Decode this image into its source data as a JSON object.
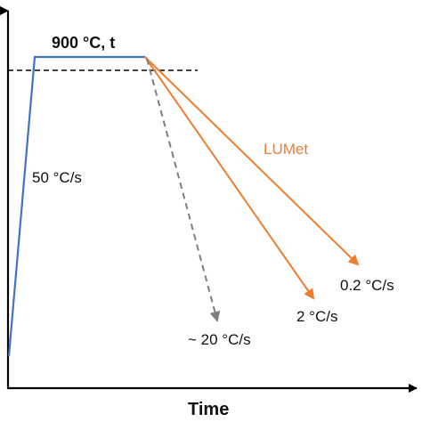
{
  "labels": {
    "hold": "900 °C, t",
    "heating_rate": "50 °C/s",
    "cooling_series": "LUMet",
    "rate_slow": "0.2 °C/s",
    "rate_mid": "2 °C/s",
    "rate_fast": "~ 20 °C/s",
    "x_axis": "Time"
  },
  "colors": {
    "axis": "#000000",
    "heating_profile": "#4472C4",
    "lumet_cooling": "#ED7D31",
    "fast_cooling": "#7F7F7F",
    "reference_line": "#000000"
  },
  "profiles": [
    {
      "name": "Heating and hold",
      "style": "solid"
    },
    {
      "name": "Cooling 0.2 °C/s",
      "style": "solid",
      "series": "LUMet"
    },
    {
      "name": "Cooling 2 °C/s",
      "style": "solid",
      "series": "LUMet"
    },
    {
      "name": "Cooling ~ 20 °C/s",
      "style": "dashed"
    }
  ]
}
